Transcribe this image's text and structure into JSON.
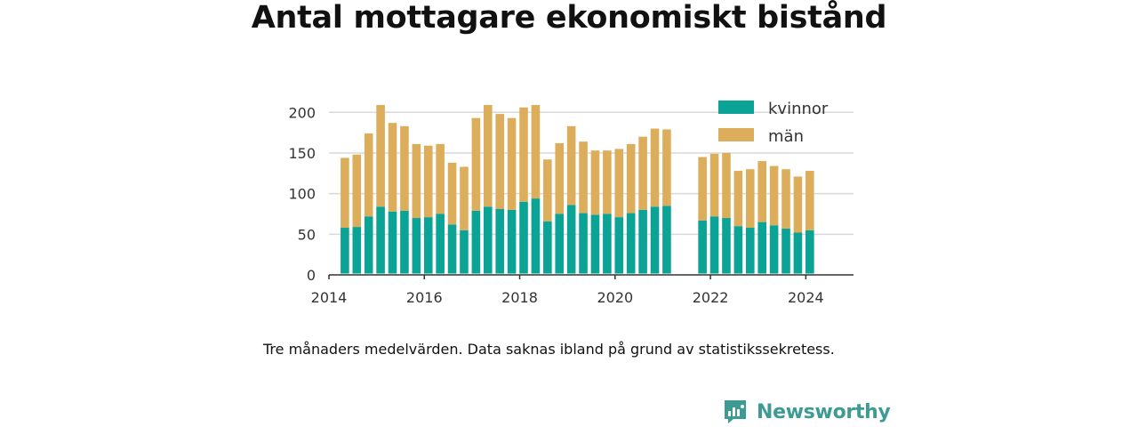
{
  "title": "Antal mottagare ekonomiskt bistånd",
  "caption": "Tre månaders medelvärden. Data saknas ibland på grund av statistikssekretess.",
  "brand": {
    "name": "Newsworthy",
    "icon": "newsworthy-logo-icon"
  },
  "colors": {
    "kvinnor": "#0aa396",
    "man": "#dcae5c",
    "grid": "#d9d9d9",
    "axis": "#333333",
    "brand": "#3d9b93"
  },
  "chart_data": {
    "type": "bar",
    "stacked": true,
    "xlabel": "",
    "ylabel": "",
    "ylim": [
      0,
      220
    ],
    "xlim": [
      2014.0,
      2025.0
    ],
    "yticks": [
      0,
      50,
      100,
      150,
      200
    ],
    "xticks": [
      2014,
      2016,
      2018,
      2020,
      2022,
      2024
    ],
    "grid": true,
    "legend_position": "top-right",
    "x": [
      "2014-05",
      "2014-08",
      "2014-11",
      "2015-02",
      "2015-05",
      "2015-08",
      "2015-11",
      "2016-02",
      "2016-05",
      "2016-08",
      "2016-11",
      "2017-02",
      "2017-05",
      "2017-08",
      "2017-11",
      "2018-02",
      "2018-05",
      "2018-08",
      "2018-11",
      "2019-02",
      "2019-05",
      "2019-08",
      "2019-11",
      "2020-02",
      "2020-05",
      "2020-08",
      "2020-11",
      "2021-02",
      "2021-11",
      "2022-02",
      "2022-05",
      "2022-08",
      "2022-11",
      "2023-02",
      "2023-05",
      "2023-08",
      "2023-11",
      "2024-02"
    ],
    "series": [
      {
        "name": "kvinnor",
        "values": [
          58,
          59,
          72,
          84,
          78,
          79,
          70,
          71,
          75,
          62,
          55,
          79,
          84,
          81,
          80,
          90,
          94,
          66,
          75,
          86,
          76,
          74,
          75,
          71,
          76,
          80,
          84,
          85,
          67,
          72,
          70,
          60,
          58,
          65,
          61,
          57,
          52,
          55
        ]
      },
      {
        "name": "män",
        "values": [
          86,
          89,
          102,
          125,
          109,
          104,
          91,
          88,
          86,
          76,
          78,
          114,
          125,
          117,
          113,
          116,
          115,
          76,
          87,
          97,
          88,
          79,
          78,
          84,
          85,
          90,
          96,
          94,
          78,
          77,
          80,
          68,
          72,
          75,
          73,
          73,
          69,
          73
        ]
      }
    ]
  }
}
